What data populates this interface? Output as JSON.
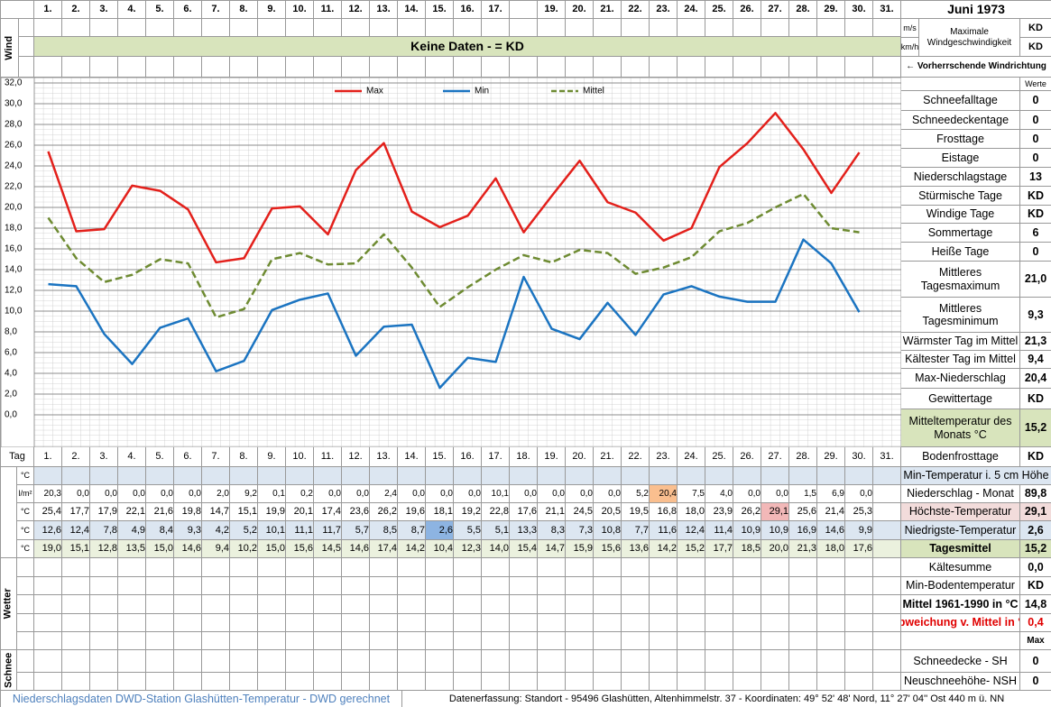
{
  "header": {
    "title": "Juni 1973",
    "days": [
      "1.",
      "2.",
      "3.",
      "4.",
      "5.",
      "6.",
      "7.",
      "8.",
      "9.",
      "10.",
      "11.",
      "12.",
      "13.",
      "14.",
      "15.",
      "16.",
      "17.",
      null,
      "19.",
      "20.",
      "21.",
      "22.",
      "23.",
      "24.",
      "25.",
      "26.",
      "27.",
      "28.",
      "29.",
      "30.",
      "31."
    ]
  },
  "wind": {
    "label": "Wind",
    "banner": "Keine Daten -  = KD",
    "unit_ms": "m/s",
    "unit_kmh": "km/h",
    "max_label": "Maximale Windgeschwindigkeit",
    "max_ms": "KD",
    "max_kmh": "KD",
    "direction_label": "← Vorherrschende Windrichtung"
  },
  "chart_data": {
    "type": "line",
    "categories": [
      "1.",
      "2.",
      "3.",
      "4.",
      "5.",
      "6.",
      "7.",
      "8.",
      "9.",
      "10.",
      "11.",
      "12.",
      "13.",
      "14.",
      "15.",
      "16.",
      "17.",
      "18.",
      "19.",
      "20.",
      "21.",
      "22.",
      "23.",
      "24.",
      "25.",
      "26.",
      "27.",
      "28.",
      "29.",
      "30.",
      "31."
    ],
    "ylim": [
      0,
      32
    ],
    "yticks": [
      {
        "value": 0,
        "label": "0,0"
      },
      {
        "value": 2,
        "label": "2,0"
      },
      {
        "value": 4,
        "label": "4,0"
      },
      {
        "value": 6,
        "label": "6,0"
      },
      {
        "value": 8,
        "label": "8,0"
      },
      {
        "value": 10,
        "label": "10,0"
      },
      {
        "value": 12,
        "label": "12,0"
      },
      {
        "value": 14,
        "label": "14,0"
      },
      {
        "value": 16,
        "label": "16,0"
      },
      {
        "value": 18,
        "label": "18,0"
      },
      {
        "value": 20,
        "label": "20,0"
      },
      {
        "value": 22,
        "label": "22,0"
      },
      {
        "value": 24,
        "label": "24,0"
      },
      {
        "value": 26,
        "label": "26,0"
      },
      {
        "value": 28,
        "label": "28,0"
      },
      {
        "value": 30,
        "label": "30,0"
      },
      {
        "value": 32,
        "label": "32,0"
      }
    ],
    "grid": true,
    "legend": "top",
    "series": [
      {
        "name": "Max",
        "color": "#e3201b",
        "dashed": false,
        "values": [
          25.4,
          17.7,
          17.9,
          22.1,
          21.6,
          19.8,
          14.7,
          15.1,
          19.9,
          20.1,
          17.4,
          23.6,
          26.2,
          19.6,
          18.1,
          19.2,
          22.8,
          17.6,
          21.1,
          24.5,
          20.5,
          19.5,
          16.8,
          18.0,
          23.9,
          26.2,
          29.1,
          25.6,
          21.4,
          25.3,
          null
        ],
        "value_labels": [
          "25,4",
          "17,7",
          "17,9",
          "22,1",
          "21,6",
          "19,8",
          "14,7",
          "15,1",
          "19,9",
          "20,1",
          "17,4",
          "23,6",
          "26,2",
          "19,6",
          "18,1",
          "19,2",
          "22,8",
          "17,6",
          "21,1",
          "24,5",
          "20,5",
          "19,5",
          "16,8",
          "18,0",
          "23,9",
          "26,2",
          "29,1",
          "25,6",
          "21,4",
          "25,3",
          null
        ]
      },
      {
        "name": "Min",
        "color": "#1b74c1",
        "dashed": false,
        "values": [
          12.6,
          12.4,
          7.8,
          4.9,
          8.4,
          9.3,
          4.2,
          5.2,
          10.1,
          11.1,
          11.7,
          5.7,
          8.5,
          8.7,
          2.6,
          5.5,
          5.1,
          13.3,
          8.3,
          7.3,
          10.8,
          7.7,
          11.6,
          12.4,
          11.4,
          10.9,
          10.9,
          16.9,
          14.6,
          9.9,
          null
        ],
        "value_labels": [
          "12,6",
          "12,4",
          "7,8",
          "4,9",
          "8,4",
          "9,3",
          "4,2",
          "5,2",
          "10,1",
          "11,1",
          "11,7",
          "5,7",
          "8,5",
          "8,7",
          "2,6",
          "5,5",
          "5,1",
          "13,3",
          "8,3",
          "7,3",
          "10,8",
          "7,7",
          "11,6",
          "12,4",
          "11,4",
          "10,9",
          "10,9",
          "16,9",
          "14,6",
          "9,9",
          null
        ]
      },
      {
        "name": "Mittel",
        "color": "#6e8b32",
        "dashed": true,
        "values": [
          19.0,
          15.1,
          12.8,
          13.5,
          15.0,
          14.6,
          9.4,
          10.2,
          15.0,
          15.6,
          14.5,
          14.6,
          17.4,
          14.2,
          10.4,
          12.3,
          14.0,
          15.4,
          14.7,
          15.9,
          15.6,
          13.6,
          14.2,
          15.2,
          17.7,
          18.5,
          20.0,
          21.3,
          18.0,
          17.6,
          null
        ],
        "value_labels": [
          "19,0",
          "15,1",
          "12,8",
          "13,5",
          "15,0",
          "14,6",
          "9,4",
          "10,2",
          "15,0",
          "15,6",
          "14,5",
          "14,6",
          "17,4",
          "14,2",
          "10,4",
          "12,3",
          "14,0",
          "15,4",
          "14,7",
          "15,9",
          "15,6",
          "13,6",
          "14,2",
          "15,2",
          "17,7",
          "18,5",
          "20,0",
          "21,3",
          "18,0",
          "17,6",
          null
        ]
      }
    ]
  },
  "stats": {
    "header": "Werte",
    "rows": [
      {
        "label": "Schneefalltage",
        "value": "0"
      },
      {
        "label": "Schneedeckentage",
        "value": "0"
      },
      {
        "label": "Frosttage",
        "value": "0"
      },
      {
        "label": "Eistage",
        "value": "0"
      },
      {
        "label": "Niederschlagstage",
        "value": "13"
      },
      {
        "label": "Stürmische Tage",
        "value": "KD"
      },
      {
        "label": "Windige Tage",
        "value": "KD"
      },
      {
        "label": "Sommertage",
        "value": "6"
      },
      {
        "label": "Heiße Tage",
        "value": "0"
      },
      {
        "label": "Mittleres Tagesmaximum",
        "value": "21,0"
      },
      {
        "label": "Mittleres Tagesminimum",
        "value": "9,3"
      },
      {
        "label": "Wärmster Tag im Mittel",
        "value": "21,3"
      },
      {
        "label": "Kältester Tag im Mittel",
        "value": "9,4"
      },
      {
        "label": "Max-Niederschlag",
        "value": "20,4"
      },
      {
        "label": "Gewittertage",
        "value": "KD"
      },
      {
        "label": "Mitteltemperatur des Monats °C",
        "value": "15,2"
      },
      {
        "label": "Bodenfrosttage",
        "value": "KD"
      }
    ]
  },
  "table": {
    "day_label": "Tag",
    "rows": [
      {
        "unit": "°C"
      },
      {
        "unit": "l/m²",
        "values": [
          "20,3",
          "0,0",
          "0,0",
          "0,0",
          "0,0",
          "0,0",
          "2,0",
          "9,2",
          "0,1",
          "0,2",
          "0,0",
          "0,0",
          "2,4",
          "0,0",
          "0,0",
          "0,0",
          "10,1",
          "0,0",
          "0,0",
          "0,0",
          "0,0",
          "5,2",
          "20,4",
          "7,5",
          "4,0",
          "0,0",
          "0,0",
          "1,5",
          "6,9",
          "0,0",
          null
        ]
      },
      {
        "unit": "°C"
      },
      {
        "unit": "°C"
      },
      {
        "unit": "°C"
      }
    ]
  },
  "summary": [
    {
      "label": "Min-Temperatur i. 5 cm Höhe"
    },
    {
      "label": "Niederschlag - Monat",
      "value": "89,8"
    },
    {
      "label": "Höchste-Temperatur",
      "value": "29,1"
    },
    {
      "label": "Niedrigste-Temperatur",
      "value": "2,6"
    },
    {
      "label": "Tagesmittel",
      "value": "15,2"
    },
    {
      "label": "Kältesumme",
      "value": "0,0"
    },
    {
      "label": "Min-Bodentemperatur",
      "value": "KD"
    },
    {
      "label": "Mittel 1961-1990 in °C",
      "value": "14,8"
    },
    {
      "label": "Abweichung v. Mittel in °C",
      "value": "0,4"
    },
    {
      "value": "Max"
    },
    {
      "label": "Schneedecke -  SH",
      "value": "0"
    },
    {
      "label": "Neuschneehöhe- NSH",
      "value": "0"
    }
  ],
  "weather_label": "Wetter",
  "snow_label": "Schnee",
  "footer": {
    "left": "Niederschlagsdaten DWD-Station Glashütten-Temperatur -  DWD gerechnet",
    "right": "Datenerfassung:  Standort -  95496  Glashütten, Altenhimmelstr. 37 - Koordinaten:  49° 52' 48' Nord,   11° 27' 04'' Ost   440 m ü. NN"
  }
}
